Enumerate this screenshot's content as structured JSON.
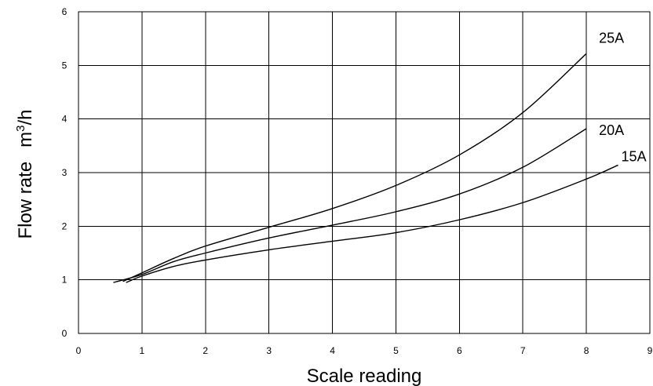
{
  "chart_data": {
    "type": "line",
    "xlabel": "Scale reading",
    "ylabel": "Flow rate",
    "ylabel_unit_base": "m",
    "ylabel_unit_exp": "3",
    "ylabel_unit_tail": "/h",
    "xlim": [
      0,
      9
    ],
    "ylim": [
      0,
      6
    ],
    "x_ticks": [
      "0",
      "1",
      "2",
      "3",
      "4",
      "5",
      "6",
      "7",
      "8",
      "9"
    ],
    "y_ticks": [
      "0",
      "1",
      "2",
      "3",
      "4",
      "5",
      "6"
    ],
    "grid": true,
    "series": [
      {
        "name": "25A",
        "x": [
          0.7,
          1,
          1.5,
          2,
          3,
          4,
          5,
          6,
          7,
          8
        ],
        "y": [
          0.97,
          1.13,
          1.4,
          1.63,
          1.98,
          2.33,
          2.76,
          3.33,
          4.12,
          5.22
        ]
      },
      {
        "name": "20A",
        "x": [
          0.55,
          1,
          1.5,
          2,
          3,
          4,
          5,
          6,
          7,
          8
        ],
        "y": [
          0.95,
          1.1,
          1.34,
          1.5,
          1.78,
          2.02,
          2.27,
          2.6,
          3.1,
          3.82
        ]
      },
      {
        "name": "15A",
        "x": [
          0.75,
          1,
          1.5,
          2,
          3,
          4,
          5,
          6,
          7,
          8,
          8.5
        ],
        "y": [
          0.95,
          1.07,
          1.25,
          1.37,
          1.56,
          1.72,
          1.88,
          2.12,
          2.44,
          2.88,
          3.14
        ]
      }
    ]
  }
}
